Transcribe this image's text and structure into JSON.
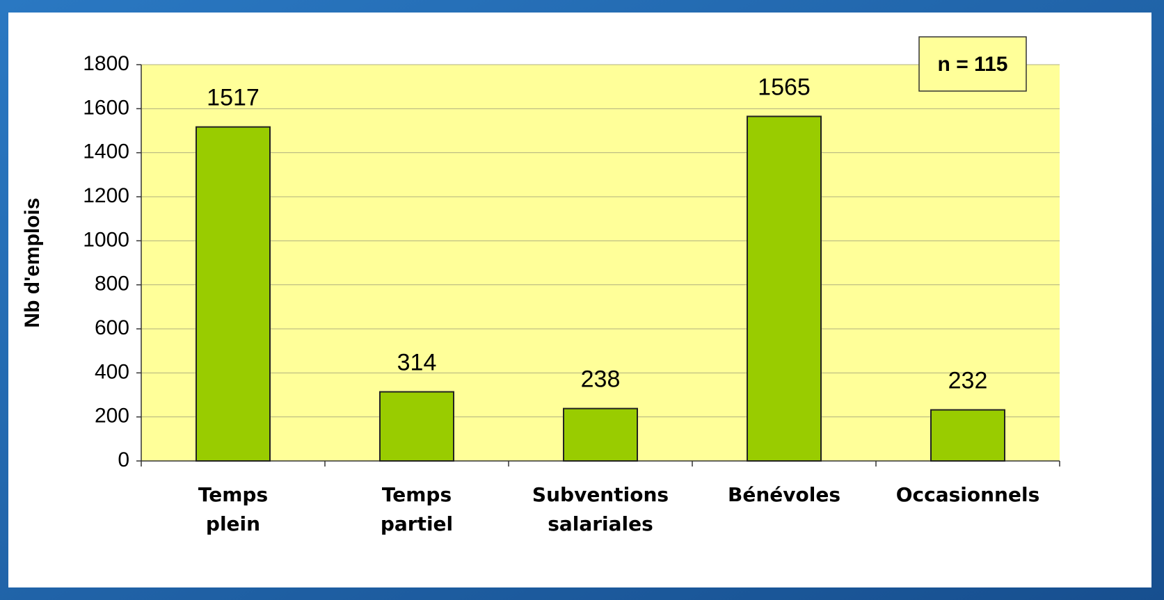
{
  "chart_data": {
    "type": "bar",
    "y_label": "Nb d'emplois",
    "annotation": "n = 115",
    "categories": [
      "Temps\nplein",
      "Temps\npartiel",
      "Subventions\nsalariales",
      "Bénévoles",
      "Occasionnels"
    ],
    "values": [
      1517,
      314,
      238,
      1565,
      232
    ],
    "color": "#99cc00",
    "ylim": [
      0,
      1800
    ],
    "yticks": [
      0,
      200,
      400,
      600,
      800,
      1000,
      1200,
      1400,
      1600,
      1800
    ],
    "grid": true
  }
}
